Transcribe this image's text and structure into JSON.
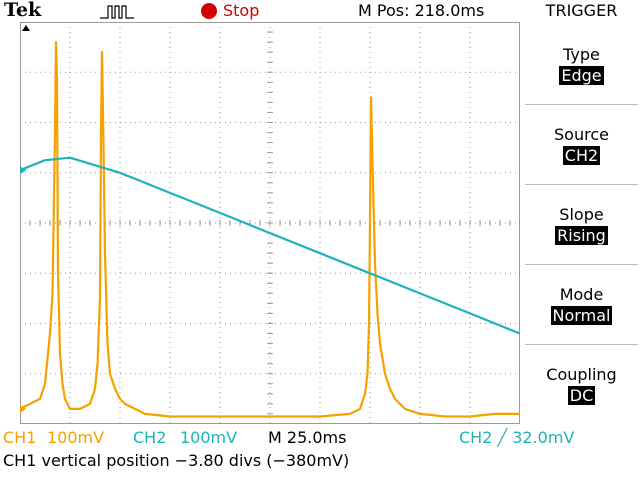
{
  "header": {
    "brand": "Tek",
    "acq_icon": "acquisition-pulse-icon",
    "run_state": "Stop",
    "m_pos": "M Pos: 218.0ms"
  },
  "menu": {
    "title": "TRIGGER",
    "items": [
      {
        "label": "Type",
        "value": "Edge"
      },
      {
        "label": "Source",
        "value": "CH2"
      },
      {
        "label": "Slope",
        "value": "Rising"
      },
      {
        "label": "Mode",
        "value": "Normal"
      },
      {
        "label": "Coupling",
        "value": "DC"
      }
    ]
  },
  "markers": {
    "ch1": "1",
    "ch2": "2"
  },
  "status": {
    "ch1_label": "CH1",
    "ch1_scale": "100mV",
    "ch2_label": "CH2",
    "ch2_scale": "100mV",
    "timebase": "M 25.0ms",
    "trigger_readout": "CH2 ╱ 32.0mV"
  },
  "message": "CH1 vertical position −3.80 divs (−380mV)",
  "colors": {
    "ch1": "#f5a100",
    "ch2": "#1cb3b8",
    "stop": "#d40000",
    "grid": "#9a9a9a"
  },
  "chart_data": {
    "type": "line",
    "grid": true,
    "x_divisions": 10,
    "y_divisions": 8,
    "xlim": [
      0,
      10
    ],
    "ylim": [
      -4,
      4
    ],
    "series": [
      {
        "name": "CH1",
        "x": [
          0,
          0.2,
          0.4,
          0.5,
          0.6,
          0.65,
          0.7,
          0.72,
          0.74,
          0.76,
          0.8,
          0.85,
          0.9,
          1.0,
          1.2,
          1.4,
          1.5,
          1.55,
          1.6,
          1.62,
          1.64,
          1.66,
          1.7,
          1.75,
          1.8,
          1.9,
          2.0,
          2.1,
          2.3,
          2.5,
          3.0,
          4.0,
          5.0,
          6.0,
          6.6,
          6.8,
          6.9,
          6.95,
          6.98,
          7.0,
          7.02,
          7.05,
          7.1,
          7.15,
          7.2,
          7.3,
          7.4,
          7.5,
          7.7,
          8.0,
          8.5,
          9.0,
          9.5,
          10.0
        ],
        "y": [
          -3.7,
          -3.6,
          -3.5,
          -3.2,
          -2.2,
          -1.4,
          1.8,
          3.6,
          2.8,
          -1.0,
          -2.6,
          -3.2,
          -3.5,
          -3.7,
          -3.7,
          -3.6,
          -3.3,
          -2.8,
          -1.5,
          1.8,
          3.4,
          2.2,
          -0.6,
          -2.4,
          -3.0,
          -3.3,
          -3.5,
          -3.6,
          -3.7,
          -3.8,
          -3.85,
          -3.85,
          -3.85,
          -3.85,
          -3.8,
          -3.7,
          -3.4,
          -3.0,
          -2.0,
          0.0,
          2.5,
          1.2,
          -0.8,
          -1.8,
          -2.4,
          -3.0,
          -3.3,
          -3.5,
          -3.7,
          -3.8,
          -3.85,
          -3.85,
          -3.8,
          -3.8
        ]
      },
      {
        "name": "CH2",
        "x": [
          0,
          0.5,
          1.0,
          2.0,
          3.0,
          4.0,
          5.0,
          6.0,
          7.0,
          8.0,
          9.0,
          10.0
        ],
        "y": [
          1.05,
          1.25,
          1.3,
          1.0,
          0.6,
          0.2,
          -0.2,
          -0.6,
          -1.0,
          -1.4,
          -1.8,
          -2.2
        ]
      }
    ]
  }
}
